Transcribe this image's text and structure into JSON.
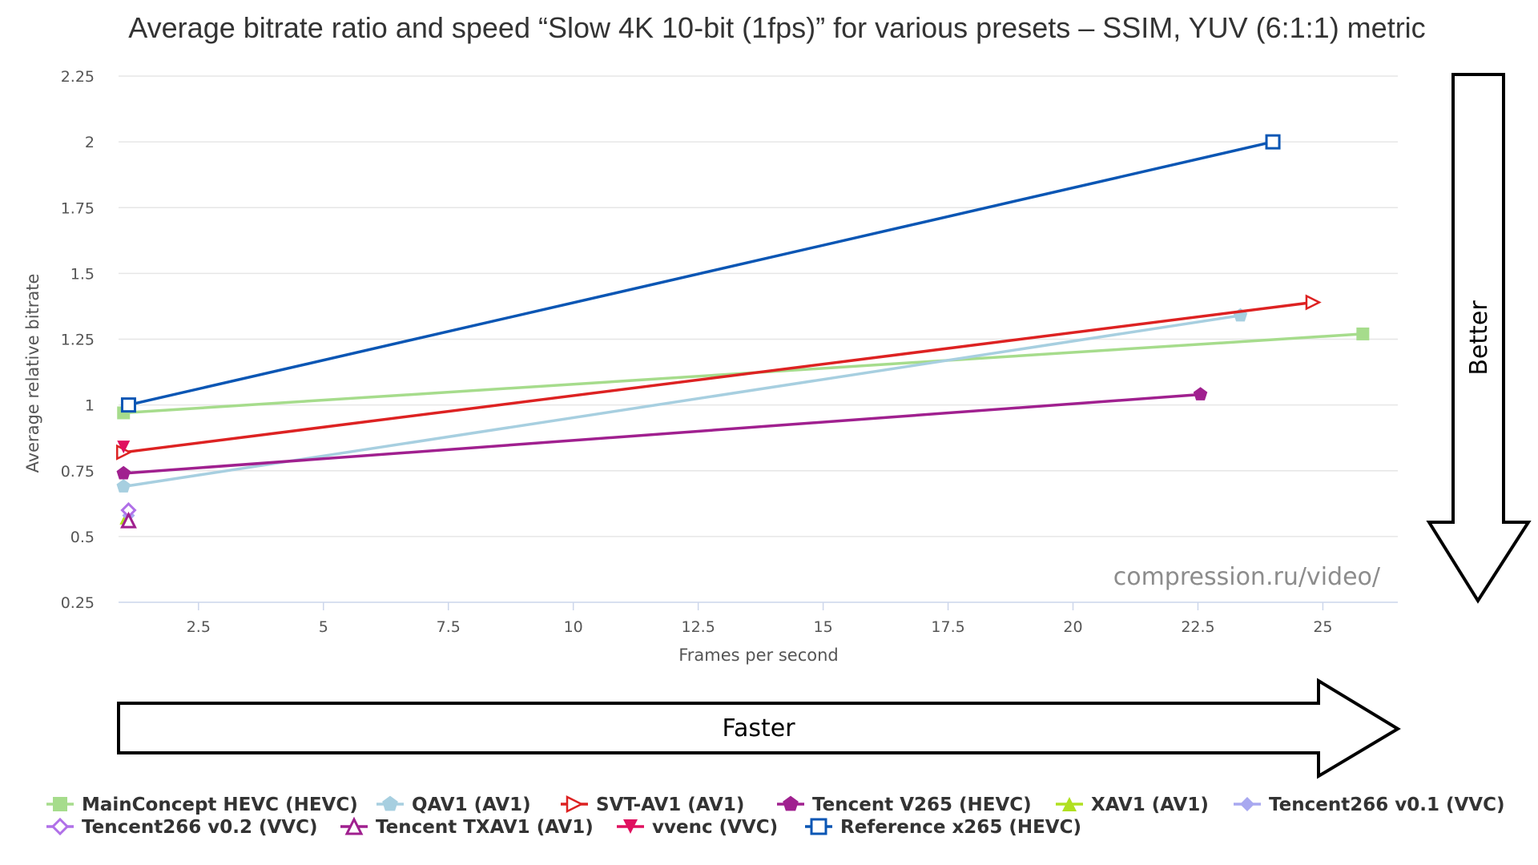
{
  "chart_data": {
    "type": "scatter",
    "title": "Average bitrate ratio and speed “Slow 4K 10-bit (1fps)” for various presets – SSIM, YUV (6:1:1) metric",
    "xlabel": "Frames per second",
    "ylabel": "Average relative bitrate",
    "xlim": [
      0.9,
      26.5
    ],
    "ylim": [
      0.25,
      2.25
    ],
    "x_ticks": [
      "2.5",
      "5",
      "7.5",
      "10",
      "12.5",
      "15",
      "17.5",
      "20",
      "22.5",
      "25"
    ],
    "x_tick_values": [
      2.5,
      5,
      7.5,
      10,
      12.5,
      15,
      17.5,
      20,
      22.5,
      25
    ],
    "y_ticks": [
      "0.25",
      "0.5",
      "0.75",
      "1",
      "1.25",
      "1.5",
      "1.75",
      "2",
      "2.25"
    ],
    "y_tick_values": [
      0.25,
      0.5,
      0.75,
      1,
      1.25,
      1.5,
      1.75,
      2,
      2.25
    ],
    "grid": "horizontal",
    "legend_position": "bottom",
    "watermark": "compression.ru/video/",
    "series": [
      {
        "name": "MainConcept HEVC (HEVC)",
        "color": "#a6dc8c",
        "marker": "square",
        "points": [
          [
            1.0,
            0.97
          ],
          [
            25.8,
            1.27
          ]
        ]
      },
      {
        "name": "QAV1 (AV1)",
        "color": "#a7cfe0",
        "marker": "pentagon",
        "points": [
          [
            1.0,
            0.69
          ],
          [
            23.35,
            1.34
          ]
        ]
      },
      {
        "name": "SVT-AV1 (AV1)",
        "color": "#dd2222",
        "marker": "triangle-right",
        "points": [
          [
            1.0,
            0.82
          ],
          [
            24.8,
            1.39
          ]
        ]
      },
      {
        "name": "Tencent V265 (HEVC)",
        "color": "#a0208f",
        "marker": "pentagon",
        "points": [
          [
            1.0,
            0.74
          ],
          [
            22.55,
            1.04
          ]
        ]
      },
      {
        "name": "XAV1 (AV1)",
        "color": "#b0e020",
        "marker": "triangle",
        "points": [
          [
            1.05,
            0.57
          ]
        ]
      },
      {
        "name": "Tencent266 v0.1 (VVC)",
        "color": "#a8a8f0",
        "marker": "diamond",
        "points": [
          [
            1.1,
            0.58
          ]
        ]
      },
      {
        "name": "Tencent266 v0.2 (VVC)",
        "color": "#b070e8",
        "marker": "diamond-open",
        "points": [
          [
            1.1,
            0.6
          ]
        ]
      },
      {
        "name": "Tencent TXAV1 (AV1)",
        "color": "#a0208f",
        "marker": "triangle-open",
        "points": [
          [
            1.1,
            0.56
          ]
        ]
      },
      {
        "name": "vvenc (VVC)",
        "color": "#e0105f",
        "marker": "triangle-down",
        "points": [
          [
            1.0,
            0.84
          ]
        ]
      },
      {
        "name": "Reference x265 (HEVC)",
        "color": "#0a56b4",
        "marker": "square-open",
        "points": [
          [
            1.1,
            1.0
          ],
          [
            24.0,
            2.0
          ]
        ]
      }
    ]
  },
  "arrows": {
    "better": "Better",
    "faster": "Faster"
  }
}
